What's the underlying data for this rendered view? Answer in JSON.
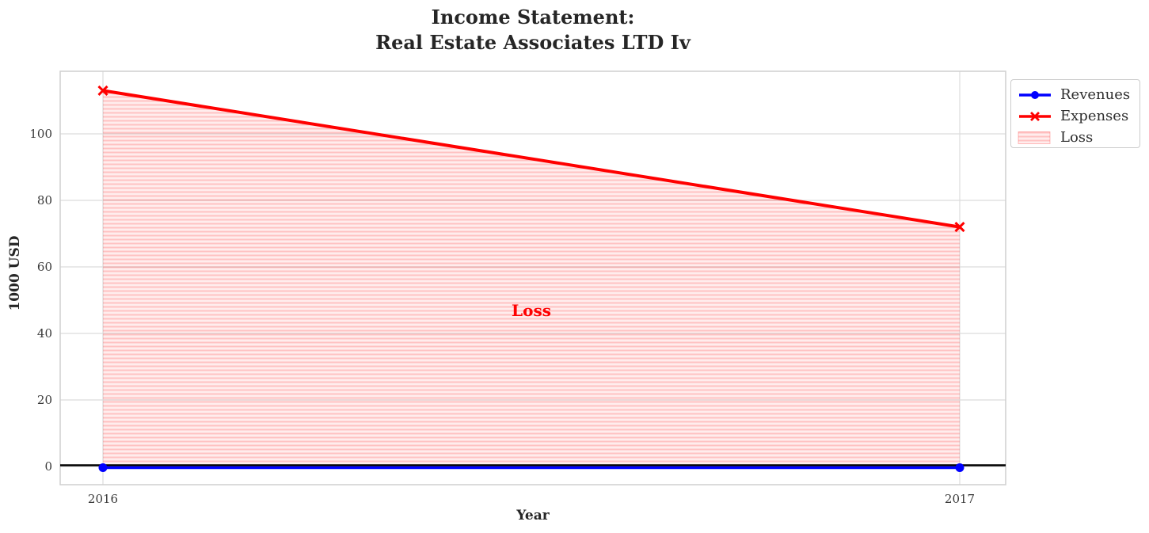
{
  "title": {
    "line1": "Income Statement:",
    "line2": "Real Estate Associates LTD Iv"
  },
  "chart_data": {
    "type": "line",
    "title": "Income Statement: Real Estate Associates LTD Iv",
    "xlabel": "Year",
    "ylabel": "1000 USD",
    "categories": [
      "2016",
      "2017"
    ],
    "series": [
      {
        "name": "Revenues",
        "values": [
          0,
          0
        ],
        "color": "#0000ff",
        "marker": "circle",
        "line_width": 3.5
      },
      {
        "name": "Expenses",
        "values": [
          113,
          72
        ],
        "color": "#ff0000",
        "marker": "x",
        "line_width": 4
      }
    ],
    "loss_area": {
      "name": "Loss",
      "between": [
        "Expenses",
        "Revenues"
      ],
      "hatch": "horizontal",
      "fill_bg": "rgba(255,0,0,0.07)",
      "fill_line": "rgba(255,0,0,0.18)"
    },
    "annotation": {
      "text": "Loss",
      "x": 2016.5,
      "y": 47,
      "color": "#ff0000"
    },
    "yticks": [
      0,
      20,
      40,
      60,
      80,
      100
    ],
    "ylim": [
      -5.5,
      118.8
    ],
    "grid": true,
    "zero_line_color": "#000000",
    "legend_position": "upper-right-outside"
  },
  "legend": {
    "items": [
      {
        "label": "Revenues",
        "kind": "line",
        "color": "#0000ff",
        "marker": "circle"
      },
      {
        "label": "Expenses",
        "kind": "line",
        "color": "#ff0000",
        "marker": "x"
      },
      {
        "label": "Loss",
        "kind": "patch",
        "color": "#ff0000"
      }
    ]
  }
}
